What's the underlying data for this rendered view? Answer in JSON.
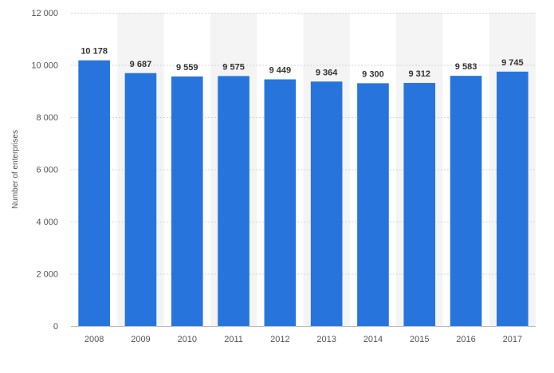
{
  "chart_data": {
    "type": "bar",
    "categories": [
      "2008",
      "2009",
      "2010",
      "2011",
      "2012",
      "2013",
      "2014",
      "2015",
      "2016",
      "2017"
    ],
    "values": [
      10178,
      9687,
      9559,
      9575,
      9449,
      9364,
      9300,
      9312,
      9583,
      9745
    ],
    "value_labels": [
      "10 178",
      "9 687",
      "9 559",
      "9 575",
      "9 449",
      "9 364",
      "9 300",
      "9 312",
      "9 583",
      "9 745"
    ],
    "ylabel": "Number of enterprises",
    "ylim": [
      0,
      12000
    ],
    "y_ticks": [
      0,
      2000,
      4000,
      6000,
      8000,
      10000,
      12000
    ],
    "y_tick_labels": [
      "0",
      "2 000",
      "4 000",
      "6 000",
      "8 000",
      "10 000",
      "12 000"
    ],
    "grid": true,
    "bar_color": "#2775dc",
    "band_color": "#f4f4f4",
    "grid_color": "#d4d4d4",
    "axis_text_color": "#555555",
    "value_label_color": "#333333"
  }
}
